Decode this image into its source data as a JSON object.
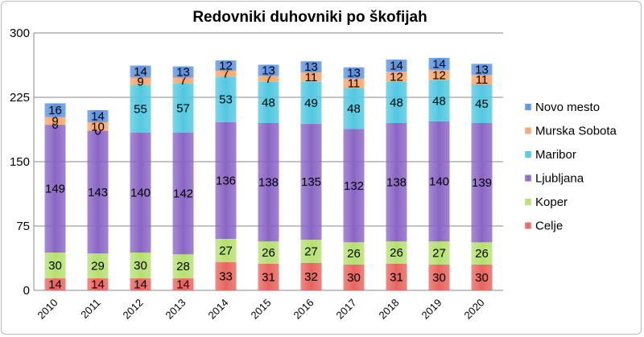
{
  "chart_data": {
    "type": "bar",
    "stacked": true,
    "title": "Redovniki duhovniki po škofijah",
    "xlabel": "",
    "ylabel": "",
    "ylim": [
      0,
      300
    ],
    "yticks": [
      0,
      75,
      150,
      225,
      300
    ],
    "grid": true,
    "legend_position": "right",
    "categories": [
      "2010",
      "2011",
      "2012",
      "2013",
      "2014",
      "2015",
      "2016",
      "2017",
      "2018",
      "2019",
      "2020"
    ],
    "series": [
      {
        "name": "Celje",
        "color": "#e8645e",
        "values": [
          14,
          14,
          14,
          14,
          33,
          31,
          32,
          30,
          31,
          30,
          30
        ]
      },
      {
        "name": "Koper",
        "color": "#b5e070",
        "values": [
          30,
          29,
          30,
          28,
          27,
          26,
          27,
          26,
          26,
          27,
          26
        ]
      },
      {
        "name": "Ljubljana",
        "color": "#8a66c4",
        "values": [
          149,
          143,
          140,
          142,
          136,
          138,
          135,
          132,
          138,
          140,
          139
        ]
      },
      {
        "name": "Maribor",
        "color": "#52c8e0",
        "values": [
          0,
          0,
          55,
          57,
          53,
          48,
          49,
          48,
          48,
          48,
          45
        ]
      },
      {
        "name": "Murska Sobota",
        "color": "#f5a46a",
        "values": [
          9,
          10,
          9,
          7,
          7,
          7,
          11,
          11,
          12,
          12,
          11
        ]
      },
      {
        "name": "Novo mesto",
        "color": "#5a92e0",
        "values": [
          16,
          14,
          14,
          13,
          12,
          13,
          13,
          13,
          14,
          14,
          13
        ]
      }
    ],
    "data_labels": {
      "2010": {
        "Celje": "14",
        "Koper": "30",
        "Ljubljana": "149",
        "Maribor": "0",
        "Murska Sobota": "9",
        "Novo mesto": "16"
      },
      "2011": {
        "Celje": "14",
        "Koper": "29",
        "Ljubljana": "143",
        "Maribor": "0",
        "Murska Sobota": "10",
        "Novo mesto": "14"
      }
    }
  }
}
